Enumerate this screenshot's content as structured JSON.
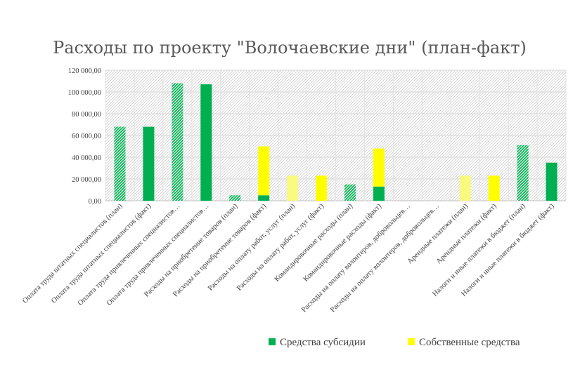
{
  "chart_data": {
    "type": "bar",
    "stacked": true,
    "title": "Расходы по проекту \"Волочаевские дни\" (план-факт)",
    "ylim": [
      0,
      120000
    ],
    "yticks": [
      "0,00",
      "20 000,00",
      "40 000,00",
      "60 000,00",
      "80 000,00",
      "100 000,00",
      "120 000,00"
    ],
    "grid": true,
    "legend_position": "bottom-right",
    "categories": [
      "Оплата труда штатных специалистов (план)",
      "Оплата труда штатных специалистов (факт)",
      "Оплата труда привлеченных специалистов…",
      "Оплата труда привлеченных специалистов…",
      "Расходы на приобретение товаров (план)",
      "Расходы на приобретение товаров (факт)",
      "Расходы на оплату работ, услуг (план)",
      "Расходы на оплату работ, услуг (факт)",
      "Командировочные расходы (план)",
      "Командировочные расходы (факт)",
      "Расходы на оплату волонтеров, добровольцев…",
      "Расходы на оплату волонтеров, добровольцев…",
      "Арендные платежи (план)",
      "Арендные платежи (факт)",
      "Налоги и иные платежи в бюджет (план)",
      "Налоги и иные платежи в бюджет (факт)"
    ],
    "bar_style": [
      "hatched",
      "solid",
      "hatched",
      "solid",
      "hatched",
      "solid",
      "hatched",
      "solid",
      "hatched",
      "solid",
      "hatched",
      "solid",
      "hatched",
      "solid",
      "hatched",
      "solid"
    ],
    "series": [
      {
        "name": "Средства субсидии",
        "color": "#00b050",
        "values": [
          68000,
          68000,
          108000,
          107000,
          5000,
          5000,
          0,
          0,
          15000,
          13000,
          0,
          0,
          0,
          0,
          51000,
          35000
        ]
      },
      {
        "name": "Собственные средства",
        "color": "#ffff00",
        "values": [
          0,
          0,
          0,
          0,
          0,
          45000,
          23000,
          23000,
          0,
          35000,
          0,
          0,
          23000,
          23000,
          0,
          0
        ]
      }
    ]
  }
}
